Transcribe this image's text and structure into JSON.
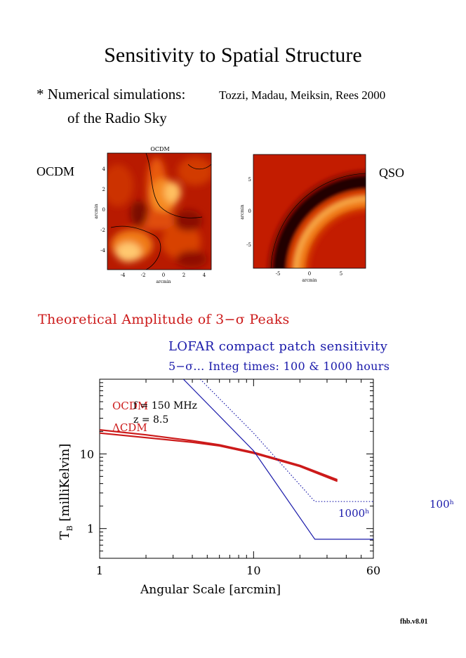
{
  "page": {
    "title": "Sensitivity to Spatial Structure",
    "bullet_prefix": "* Numerical simulations:",
    "bullet_refs": "Tozzi, Madau, Meiksin, Rees 2000",
    "bullet_line2": "of the Radio Sky",
    "left_map_label": "OCDM",
    "right_map_label": "QSO",
    "section_heading": "Theoretical Amplitude of 3−σ Peaks",
    "lofar_heading": "LOFAR compact patch sensitivity",
    "lofar_subheading": "5−σ...   Integ times: 100 & 1000 hours",
    "footer": "fhb.v8.01"
  },
  "maps": {
    "ocdm": {
      "title": "OCDM",
      "xlabel": "arcmin",
      "ylabel": "arcmin",
      "xticks": [
        "-4",
        "-2",
        "0",
        "2",
        "4"
      ],
      "yticks": [
        "4",
        "2",
        "0",
        "-2",
        "-4"
      ]
    },
    "qso": {
      "xlabel": "arcmin",
      "ylabel": "arcmin",
      "xticks": [
        "-5",
        "0",
        "5"
      ],
      "yticks": [
        "5",
        "0",
        "-5"
      ]
    }
  },
  "chart_data": {
    "type": "line",
    "xlabel": "Angular Scale [arcmin]",
    "ylabel": "T_B [milliKelvin]",
    "xscale": "log",
    "yscale": "log",
    "xlim": [
      1,
      60
    ],
    "ylim": [
      0.4,
      100
    ],
    "xticks": [
      {
        "value": 1,
        "label": "1"
      },
      {
        "value": 10,
        "label": "10"
      },
      {
        "value": 60,
        "label": "60"
      }
    ],
    "yticks": [
      {
        "value": 1,
        "label": "1"
      },
      {
        "value": 10,
        "label": "10"
      }
    ],
    "annotations": {
      "freq": "f = 150 MHz",
      "redshift": "z = 8.5"
    },
    "series": [
      {
        "name": "OCDM",
        "color": "#cc1a1a",
        "style": "solid-thick",
        "points": [
          [
            1,
            21
          ],
          [
            2,
            18
          ],
          [
            4,
            15
          ],
          [
            6,
            13.2
          ],
          [
            10,
            10.5
          ],
          [
            20,
            7
          ],
          [
            35,
            4.5
          ]
        ]
      },
      {
        "name": "ΛCDM",
        "color": "#cc1a1a",
        "style": "solid-thick",
        "points": [
          [
            1,
            19
          ],
          [
            2,
            16.5
          ],
          [
            4,
            14.3
          ],
          [
            6,
            12.8
          ],
          [
            10,
            10.2
          ],
          [
            20,
            6.8
          ],
          [
            35,
            4.3
          ]
        ]
      },
      {
        "name": "1000ʰ",
        "color": "#1a1aaa",
        "style": "solid",
        "points": [
          [
            3.5,
            100
          ],
          [
            10,
            11
          ],
          [
            25,
            0.72
          ],
          [
            60,
            0.72
          ]
        ]
      },
      {
        "name": "100ʰ",
        "color": "#1a1aaa",
        "style": "dotted",
        "points": [
          [
            4.5,
            100
          ],
          [
            10,
            19
          ],
          [
            25,
            2.3
          ],
          [
            60,
            2.3
          ]
        ]
      }
    ]
  }
}
